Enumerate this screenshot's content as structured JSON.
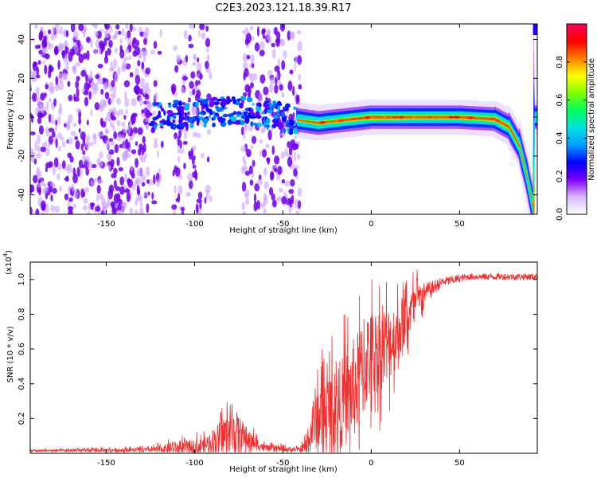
{
  "figure_title": "C2E3.2023.121.18.39.R17",
  "chart_data": [
    {
      "type": "heatmap",
      "title": "C2E3.2023.121.18.39.R17",
      "xlabel": "Height of straight line (km)",
      "ylabel": "Frequency (Hz)",
      "xlim": [
        -193,
        94
      ],
      "ylim": [
        -50,
        48
      ],
      "x_ticks": [
        -150,
        -100,
        -50,
        0,
        50
      ],
      "y_ticks": [
        -40,
        -20,
        0,
        20,
        40
      ],
      "colorbar": {
        "label": "Normalized spectral amplitude",
        "range": [
          0.0,
          1.0
        ],
        "ticks": [
          0.0,
          0.2,
          0.4,
          0.6,
          0.8
        ],
        "colors": [
          "#ffffff",
          "#d9b8ff",
          "#8000ff",
          "#0000ff",
          "#00a0ff",
          "#00e0e0",
          "#00ff60",
          "#80ff00",
          "#ffff00",
          "#ff8000",
          "#ff0000",
          "#ff0060"
        ]
      },
      "description_ridge": [
        {
          "x": -125,
          "y": 0,
          "amp": 0.35
        },
        {
          "x": -100,
          "y": 2,
          "amp": 0.35
        },
        {
          "x": -75,
          "y": 4,
          "amp": 0.4
        },
        {
          "x": -45,
          "y": -1,
          "amp": 0.35
        },
        {
          "x": -30,
          "y": -3,
          "amp": 0.7
        },
        {
          "x": -10,
          "y": -1,
          "amp": 0.75
        },
        {
          "x": 0,
          "y": 0,
          "amp": 0.9
        },
        {
          "x": 25,
          "y": 0,
          "amp": 0.75
        },
        {
          "x": 50,
          "y": 0,
          "amp": 0.75
        },
        {
          "x": 70,
          "y": -1,
          "amp": 0.85
        },
        {
          "x": 78,
          "y": -5,
          "amp": 0.85
        },
        {
          "x": 84,
          "y": -15,
          "amp": 0.6
        },
        {
          "x": 88,
          "y": -30,
          "amp": 0.5
        },
        {
          "x": 92,
          "y": -48,
          "amp": 0.45
        }
      ]
    },
    {
      "type": "line",
      "xlabel": "Height of straight line (km)",
      "ylabel": "SNR (10 * v/v)",
      "y_multiplier_label": "(x10",
      "y_multiplier_exp": "4",
      "y_multiplier_close": ")",
      "xlim": [
        -193,
        94
      ],
      "ylim": [
        0,
        1.1
      ],
      "x_ticks": [
        -150,
        -100,
        -50,
        0,
        50
      ],
      "y_ticks": [
        0.2,
        0.4,
        0.6,
        0.8,
        1.0
      ],
      "y_tick_labels": [
        "0.2",
        "0.4",
        "0.6",
        "0.8",
        "1.0"
      ],
      "line_color": "#ee3030",
      "envelope": [
        {
          "x": -193,
          "base": 0.015,
          "amp": 0.01
        },
        {
          "x": -125,
          "base": 0.02,
          "amp": 0.02
        },
        {
          "x": -110,
          "base": 0.03,
          "amp": 0.06
        },
        {
          "x": -95,
          "base": 0.04,
          "amp": 0.08
        },
        {
          "x": -85,
          "base": 0.1,
          "amp": 0.15
        },
        {
          "x": -78,
          "base": 0.14,
          "amp": 0.22
        },
        {
          "x": -70,
          "base": 0.08,
          "amp": 0.1
        },
        {
          "x": -60,
          "base": 0.03,
          "amp": 0.03
        },
        {
          "x": -40,
          "base": 0.02,
          "amp": 0.02
        },
        {
          "x": -36,
          "base": 0.05,
          "amp": 0.1
        },
        {
          "x": -32,
          "base": 0.2,
          "amp": 0.3
        },
        {
          "x": -25,
          "base": 0.25,
          "amp": 0.35
        },
        {
          "x": -15,
          "base": 0.3,
          "amp": 0.45
        },
        {
          "x": -8,
          "base": 0.4,
          "amp": 0.5
        },
        {
          "x": -2,
          "base": 0.55,
          "amp": 0.45
        },
        {
          "x": 5,
          "base": 0.6,
          "amp": 0.4
        },
        {
          "x": 12,
          "base": 0.65,
          "amp": 0.35
        },
        {
          "x": 20,
          "base": 0.78,
          "amp": 0.25
        },
        {
          "x": 30,
          "base": 0.93,
          "amp": 0.12
        },
        {
          "x": 40,
          "base": 0.99,
          "amp": 0.06
        },
        {
          "x": 55,
          "base": 1.02,
          "amp": 0.04
        },
        {
          "x": 94,
          "base": 1.02,
          "amp": 0.04
        }
      ]
    }
  ]
}
